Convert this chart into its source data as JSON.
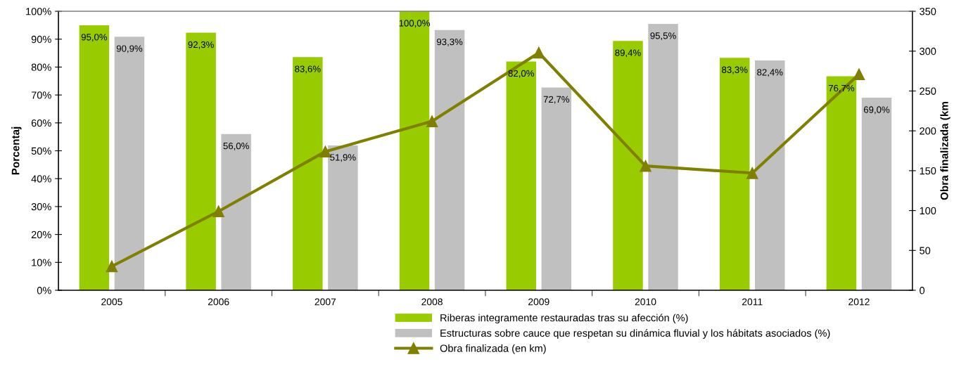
{
  "chart_data": {
    "type": "bar",
    "ylabel": "Porcentaj",
    "y2label": "Obra finalizada (km",
    "categories": [
      "2005",
      "2006",
      "2007",
      "2008",
      "2009",
      "2010",
      "2011",
      "2012"
    ],
    "series": [
      {
        "name": "Riberas integramente restauradas tras su afección (%)",
        "color": "#99cc00",
        "values": [
          95.0,
          92.3,
          83.6,
          100.0,
          82.0,
          89.4,
          83.3,
          76.7
        ],
        "value_labels": [
          "95,0%",
          "92,3%",
          "83,6%",
          "100,0%",
          "82,0%",
          "89,4%",
          "83,3%",
          "76,7%"
        ]
      },
      {
        "name": "Estructuras sobre cauce que respetan su dinámica fluvial y los hábitats asociados (%)",
        "color": "#c0c0c0",
        "values": [
          90.9,
          56.0,
          51.9,
          93.3,
          72.7,
          95.5,
          82.4,
          69.0
        ],
        "value_labels": [
          "90,9%",
          "56,0%",
          "51,9%",
          "93,3%",
          "72,7%",
          "95,5%",
          "82,4%",
          "69,0%"
        ]
      },
      {
        "name": "Obra finalizada (en km)",
        "type": "line",
        "axis": "y2",
        "color": "#808000",
        "marker": "triangle",
        "values": [
          30,
          99,
          174,
          212,
          298,
          156,
          147,
          271
        ]
      }
    ],
    "ylim": [
      0,
      100
    ],
    "yticks": [
      {
        "value": 0,
        "label": "0%"
      },
      {
        "value": 10,
        "label": "10%"
      },
      {
        "value": 20,
        "label": "20%"
      },
      {
        "value": 30,
        "label": "30%"
      },
      {
        "value": 40,
        "label": "40%"
      },
      {
        "value": 50,
        "label": "50%"
      },
      {
        "value": 60,
        "label": "60%"
      },
      {
        "value": 70,
        "label": "70%"
      },
      {
        "value": 80,
        "label": "80%"
      },
      {
        "value": 90,
        "label": "90%"
      },
      {
        "value": 100,
        "label": "100%"
      }
    ],
    "y2lim": [
      0,
      350
    ],
    "y2ticks": [
      0,
      50,
      100,
      150,
      200,
      250,
      300,
      350
    ],
    "legend": "bottom",
    "grid": false
  }
}
